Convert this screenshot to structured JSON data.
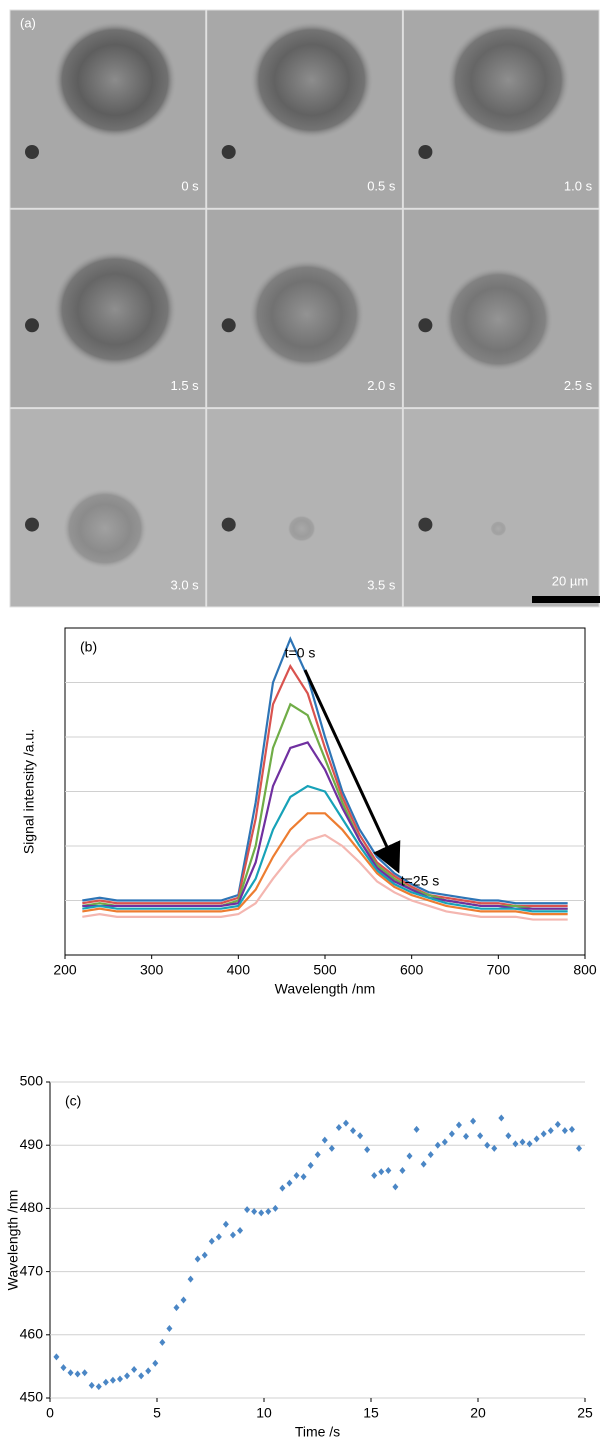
{
  "image_panel": {
    "label": "(a)",
    "frames": [
      "0 s",
      "0.5 s",
      "1.0 s",
      "1.5 s",
      "2.0 s",
      "2.5 s",
      "3.0 s",
      "3.5 s",
      null
    ],
    "scale_bar": "20 µm"
  },
  "chart_data": [
    {
      "type": "line",
      "label": "(b)",
      "xlabel": "Wavelength /nm",
      "ylabel": "Signal intensity /a.u.",
      "annotations": [
        "t=0 s",
        "t=25 s"
      ],
      "x": [
        220,
        240,
        260,
        280,
        300,
        320,
        340,
        360,
        380,
        400,
        420,
        440,
        460,
        480,
        500,
        520,
        540,
        560,
        580,
        600,
        620,
        640,
        660,
        680,
        700,
        720,
        740,
        760,
        780
      ],
      "xlim": [
        200,
        800
      ],
      "xticks": [
        200,
        300,
        400,
        500,
        600,
        700,
        800
      ],
      "ylim": [
        0,
        6
      ],
      "yticks": [
        1,
        2,
        3,
        4,
        5
      ],
      "grid": true,
      "series": [
        {
          "color": "#2e75b6",
          "values": [
            1.0,
            1.05,
            1.0,
            1.0,
            1.0,
            1.0,
            1.0,
            1.0,
            1.0,
            1.1,
            2.8,
            5.0,
            5.8,
            5.1,
            4.0,
            3.0,
            2.3,
            1.8,
            1.5,
            1.3,
            1.15,
            1.1,
            1.05,
            1.0,
            1.0,
            0.95,
            0.95,
            0.95,
            0.95
          ]
        },
        {
          "color": "#d9534f",
          "values": [
            0.95,
            1.0,
            0.95,
            0.95,
            0.95,
            0.95,
            0.95,
            0.95,
            0.95,
            1.05,
            2.5,
            4.6,
            5.3,
            4.8,
            3.8,
            2.9,
            2.2,
            1.7,
            1.45,
            1.25,
            1.1,
            1.05,
            1.0,
            0.95,
            0.95,
            0.9,
            0.9,
            0.9,
            0.9
          ]
        },
        {
          "color": "#70ad47",
          "values": [
            0.9,
            0.95,
            0.9,
            0.9,
            0.9,
            0.9,
            0.9,
            0.9,
            0.9,
            1.0,
            2.0,
            3.8,
            4.6,
            4.4,
            3.6,
            2.8,
            2.1,
            1.65,
            1.4,
            1.2,
            1.1,
            1.0,
            0.95,
            0.9,
            0.9,
            0.9,
            0.85,
            0.85,
            0.85
          ]
        },
        {
          "color": "#7030a0",
          "values": [
            0.9,
            0.9,
            0.9,
            0.9,
            0.9,
            0.9,
            0.9,
            0.9,
            0.9,
            0.95,
            1.7,
            3.1,
            3.8,
            3.9,
            3.4,
            2.7,
            2.1,
            1.6,
            1.35,
            1.2,
            1.05,
            1.0,
            0.95,
            0.9,
            0.9,
            0.85,
            0.85,
            0.85,
            0.85
          ]
        },
        {
          "color": "#17a2b8",
          "values": [
            0.85,
            0.9,
            0.85,
            0.85,
            0.85,
            0.85,
            0.85,
            0.85,
            0.85,
            0.9,
            1.4,
            2.3,
            2.9,
            3.1,
            3.0,
            2.5,
            2.0,
            1.55,
            1.3,
            1.15,
            1.05,
            0.95,
            0.9,
            0.85,
            0.85,
            0.85,
            0.8,
            0.8,
            0.8
          ]
        },
        {
          "color": "#ed7d31",
          "values": [
            0.8,
            0.85,
            0.8,
            0.8,
            0.8,
            0.8,
            0.8,
            0.8,
            0.8,
            0.85,
            1.2,
            1.8,
            2.3,
            2.6,
            2.6,
            2.3,
            1.9,
            1.5,
            1.25,
            1.1,
            1.0,
            0.9,
            0.85,
            0.8,
            0.8,
            0.8,
            0.75,
            0.75,
            0.75
          ]
        },
        {
          "color": "#f4b6b0",
          "values": [
            0.7,
            0.75,
            0.7,
            0.7,
            0.7,
            0.7,
            0.7,
            0.7,
            0.7,
            0.75,
            0.95,
            1.4,
            1.8,
            2.1,
            2.2,
            2.0,
            1.7,
            1.35,
            1.15,
            1.0,
            0.9,
            0.8,
            0.75,
            0.7,
            0.7,
            0.7,
            0.65,
            0.65,
            0.65
          ]
        }
      ]
    },
    {
      "type": "scatter",
      "label": "(c)",
      "xlabel": "Time /s",
      "ylabel": "Wavelength /nm",
      "color": "#4a86c5",
      "xlim": [
        0,
        25
      ],
      "xticks": [
        0,
        5,
        10,
        15,
        20,
        25
      ],
      "ylim": [
        450,
        500
      ],
      "yticks": [
        450,
        460,
        470,
        480,
        490,
        500
      ],
      "grid": true,
      "x": [
        0.3,
        0.63,
        0.96,
        1.29,
        1.62,
        1.95,
        2.28,
        2.61,
        2.94,
        3.27,
        3.6,
        3.93,
        4.26,
        4.59,
        4.92,
        5.25,
        5.58,
        5.91,
        6.24,
        6.57,
        6.9,
        7.23,
        7.56,
        7.89,
        8.22,
        8.55,
        8.88,
        9.21,
        9.54,
        9.87,
        10.2,
        10.53,
        10.86,
        11.19,
        11.52,
        11.85,
        12.18,
        12.51,
        12.84,
        13.17,
        13.5,
        13.83,
        14.16,
        14.49,
        14.82,
        15.15,
        15.48,
        15.81,
        16.14,
        16.47,
        16.8,
        17.13,
        17.46,
        17.79,
        18.12,
        18.45,
        18.78,
        19.11,
        19.44,
        19.77,
        20.1,
        20.43,
        20.76,
        21.09,
        21.42,
        21.75,
        22.08,
        22.41,
        22.74,
        23.07,
        23.4,
        23.73,
        24.06,
        24.39,
        24.72
      ],
      "values": [
        456.5,
        454.8,
        454,
        453.8,
        454,
        452,
        451.8,
        452.5,
        452.8,
        453,
        453.5,
        454.5,
        453.5,
        454.3,
        455.5,
        458.8,
        461,
        464.3,
        465.5,
        468.8,
        472,
        472.6,
        474.8,
        475.5,
        477.5,
        475.8,
        476.5,
        479.8,
        479.5,
        479.3,
        479.5,
        480,
        483.2,
        484,
        485.2,
        485,
        486.8,
        488.5,
        490.8,
        489.5,
        492.8,
        493.5,
        492.3,
        491.5,
        489.3,
        485.2,
        485.8,
        486,
        483.4,
        486,
        488.3,
        492.5,
        487,
        488.5,
        490,
        490.5,
        491.8,
        493.2,
        491.4,
        493.8,
        491.5,
        490,
        489.5,
        494.3,
        491.5,
        490.2,
        490.5,
        490.2,
        491,
        491.8,
        492.3,
        493.3,
        492.3,
        492.5,
        489.5
      ]
    }
  ]
}
